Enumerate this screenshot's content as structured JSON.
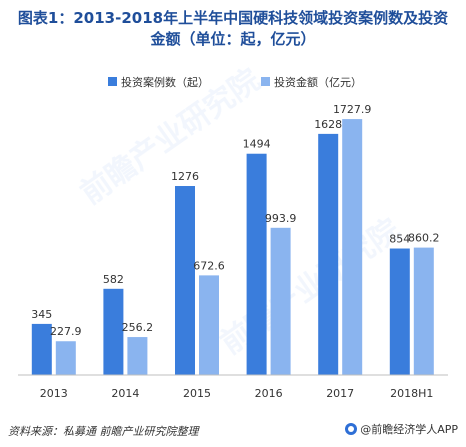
{
  "title_line1": "图表1：2013-2018年上半年中国硬科技领域投资案例数及投资",
  "title_line2": "金额（单位：起，亿元）",
  "footer_source": "资料来源：私募通 前瞻产业研究院整理",
  "footer_brand": "@前瞻经济学人APP",
  "watermark": "前瞻产业研究院",
  "colors": {
    "series1": "#3a7ddc",
    "series2": "#8ab4ef",
    "title": "#1f4e9a",
    "axis": "#bfbfbf"
  },
  "chart_data": {
    "type": "bar",
    "categories": [
      "2013",
      "2014",
      "2015",
      "2016",
      "2017",
      "2018H1"
    ],
    "series": [
      {
        "name": "投资案例数（起）",
        "values": [
          345,
          582,
          1276,
          1494,
          1628,
          854
        ],
        "labels": [
          "345",
          "582",
          "1276",
          "1494",
          "1628",
          "854"
        ]
      },
      {
        "name": "投资金额（亿元）",
        "values": [
          227.9,
          256.2,
          672.6,
          993.9,
          1727.9,
          860.2
        ],
        "labels": [
          "227.9",
          "256.2",
          "672.6",
          "993.9",
          "1727.9",
          "860.2"
        ]
      }
    ],
    "ylim": [
      0,
      1850
    ],
    "legend": "top",
    "grid": false
  }
}
